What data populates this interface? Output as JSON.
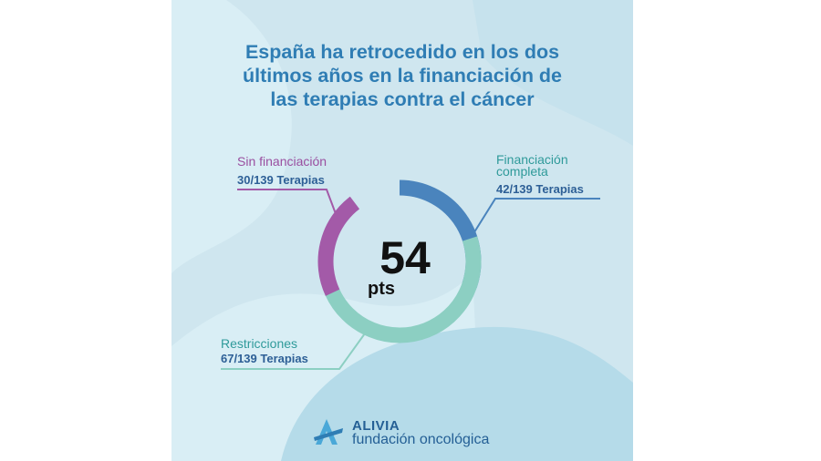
{
  "title_lines": [
    "España ha retrocedido en los dos",
    "últimos años en la financiación de",
    "las terapias contra el cáncer"
  ],
  "center": {
    "value": "54",
    "unit": "pts"
  },
  "colors": {
    "background": "#cfe6ef",
    "title": "#2f7db4",
    "full_funding": "#4a84bd",
    "restrictions": "#8ccfc2",
    "no_funding": "#a35aa8"
  },
  "chart_data": {
    "type": "donut",
    "total": 139,
    "center_value": 54,
    "center_unit": "pts",
    "segments": [
      {
        "name": "Financiación completa",
        "name_lines": [
          "Financiación",
          "completa"
        ],
        "value": 42,
        "value_label": "42/139 Terapias",
        "color": "#4a84bd"
      },
      {
        "name": "Restricciones",
        "name_lines": [
          "Restricciones"
        ],
        "value": 67,
        "value_label": "67/139 Terapias",
        "color": "#8ccfc2"
      },
      {
        "name": "Sin financiación",
        "name_lines": [
          "Sin financiación"
        ],
        "value": 30,
        "value_label": "30/139 Terapias",
        "color": "#a35aa8"
      }
    ]
  },
  "logo": {
    "brand": "ALIVIA",
    "subtitle": "fundación oncológica"
  }
}
